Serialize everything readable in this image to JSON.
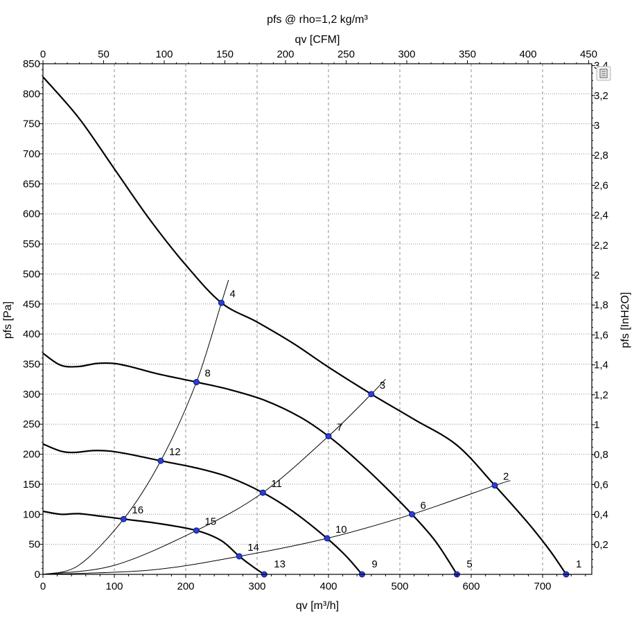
{
  "chart_data": {
    "type": "line",
    "title": "pfs @ rho=1,2 kg/m³",
    "xlabel": "qv [m³/h]",
    "ylabel": "pfs [Pa]",
    "x2label": "qv [CFM]",
    "y2label": "pfs [InH2O]",
    "xlim": [
      0,
      770
    ],
    "ylim": [
      0,
      850
    ],
    "x_ticks": [
      0,
      100,
      200,
      300,
      400,
      500,
      600,
      700
    ],
    "y_ticks": [
      0,
      50,
      100,
      150,
      200,
      250,
      300,
      350,
      400,
      450,
      500,
      550,
      600,
      650,
      700,
      750,
      800,
      850
    ],
    "x2_ticks": [
      "0",
      "50",
      "100",
      "150",
      "200",
      "250",
      "300",
      "350",
      "400",
      "450"
    ],
    "y2_ticks": [
      "0,2",
      "0,4",
      "0,6",
      "0,8",
      "1",
      "1,2",
      "1,4",
      "1,6",
      "1,8",
      "2",
      "2,2",
      "2,4",
      "2,6",
      "2,8",
      "3",
      "3,2",
      "3,4"
    ],
    "grid": true,
    "series": [
      {
        "points": [
          [
            0,
            828
          ],
          [
            50,
            760
          ],
          [
            100,
            675
          ],
          [
            150,
            590
          ],
          [
            200,
            515
          ],
          [
            250,
            452
          ],
          [
            300,
            420
          ],
          [
            350,
            385
          ],
          [
            400,
            345
          ],
          [
            460,
            300
          ],
          [
            520,
            258
          ],
          [
            580,
            215
          ],
          [
            633,
            148
          ],
          [
            680,
            85
          ],
          [
            710,
            40
          ],
          [
            733,
            0
          ]
        ]
      },
      {
        "points": [
          [
            0,
            368
          ],
          [
            25,
            348
          ],
          [
            50,
            346
          ],
          [
            75,
            351
          ],
          [
            100,
            351
          ],
          [
            125,
            345
          ],
          [
            160,
            334
          ],
          [
            215,
            320
          ],
          [
            260,
            308
          ],
          [
            310,
            290
          ],
          [
            360,
            262
          ],
          [
            400,
            230
          ],
          [
            440,
            190
          ],
          [
            480,
            145
          ],
          [
            517,
            100
          ],
          [
            550,
            55
          ],
          [
            580,
            0
          ]
        ]
      },
      {
        "points": [
          [
            0,
            217
          ],
          [
            25,
            205
          ],
          [
            45,
            203
          ],
          [
            70,
            206
          ],
          [
            95,
            205
          ],
          [
            125,
            199
          ],
          [
            165,
            189
          ],
          [
            215,
            177
          ],
          [
            260,
            162
          ],
          [
            308,
            136
          ],
          [
            350,
            105
          ],
          [
            398,
            60
          ],
          [
            425,
            30
          ],
          [
            447,
            0
          ]
        ]
      },
      {
        "points": [
          [
            0,
            105
          ],
          [
            25,
            100
          ],
          [
            50,
            101
          ],
          [
            80,
            97
          ],
          [
            113,
            92
          ],
          [
            160,
            85
          ],
          [
            215,
            73
          ],
          [
            250,
            56
          ],
          [
            275,
            30
          ],
          [
            295,
            12
          ],
          [
            310,
            0
          ]
        ]
      }
    ],
    "system_curves": [
      {
        "points": [
          [
            0,
            0
          ],
          [
            50,
            15
          ],
          [
            113,
            92
          ],
          [
            165,
            189
          ],
          [
            215,
            320
          ],
          [
            250,
            452
          ],
          [
            260,
            490
          ]
        ]
      },
      {
        "points": [
          [
            0,
            0
          ],
          [
            100,
            15
          ],
          [
            215,
            73
          ],
          [
            308,
            136
          ],
          [
            400,
            230
          ],
          [
            460,
            300
          ],
          [
            480,
            325
          ]
        ]
      },
      {
        "points": [
          [
            0,
            0
          ],
          [
            150,
            7
          ],
          [
            275,
            30
          ],
          [
            398,
            60
          ],
          [
            517,
            100
          ],
          [
            633,
            148
          ],
          [
            655,
            156
          ]
        ]
      }
    ],
    "operating_points": [
      {
        "label": "1",
        "x": 733,
        "y": 0
      },
      {
        "label": "2",
        "x": 633,
        "y": 148
      },
      {
        "label": "3",
        "x": 460,
        "y": 300
      },
      {
        "label": "4",
        "x": 250,
        "y": 452
      },
      {
        "label": "5",
        "x": 580,
        "y": 0
      },
      {
        "label": "6",
        "x": 517,
        "y": 100
      },
      {
        "label": "7",
        "x": 400,
        "y": 230
      },
      {
        "label": "8",
        "x": 215,
        "y": 320
      },
      {
        "label": "9",
        "x": 447,
        "y": 0
      },
      {
        "label": "10",
        "x": 398,
        "y": 60
      },
      {
        "label": "11",
        "x": 308,
        "y": 136
      },
      {
        "label": "12",
        "x": 165,
        "y": 189
      },
      {
        "label": "13",
        "x": 310,
        "y": 0
      },
      {
        "label": "14",
        "x": 275,
        "y": 30
      },
      {
        "label": "15",
        "x": 215,
        "y": 73
      },
      {
        "label": "16",
        "x": 113,
        "y": 92
      }
    ]
  }
}
